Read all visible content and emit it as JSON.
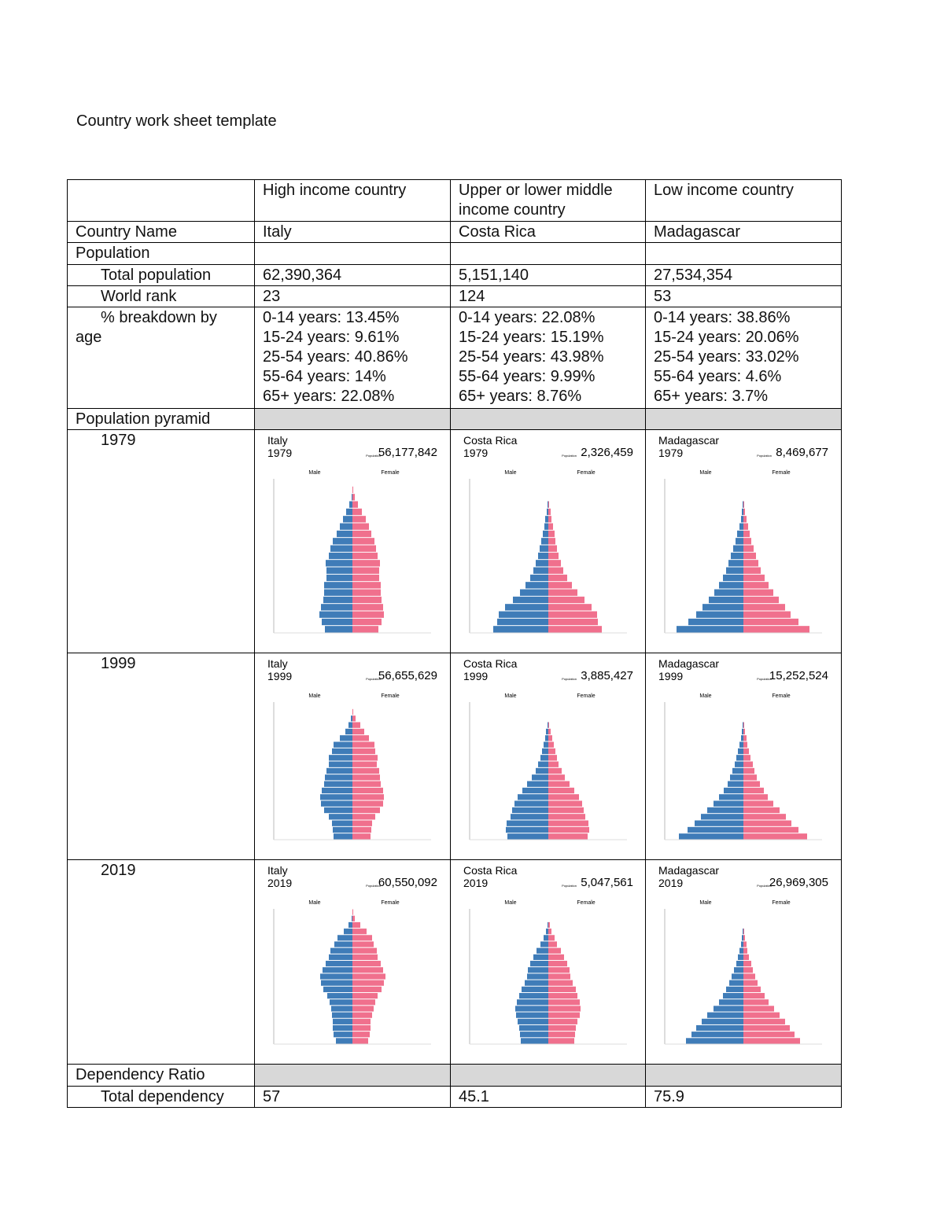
{
  "title": "Country work sheet template",
  "table": {
    "columns": [
      "High income country",
      "Upper or lower middle income country",
      "Low income country"
    ],
    "country_name": {
      "label": "Country Name",
      "values": [
        "Italy",
        "Costa Rica",
        "Madagascar"
      ]
    },
    "population_section": "Population",
    "total_population": {
      "label": "Total population",
      "values": [
        "62,390,364",
        "5,151,140",
        "27,534,354"
      ]
    },
    "world_rank": {
      "label": "World rank",
      "values": [
        23,
        124,
        53
      ]
    },
    "age_breakdown": {
      "label": "% breakdown by age",
      "values": [
        [
          "0-14 years: 13.45%",
          "15-24 years: 9.61%",
          "25-54 years: 40.86%",
          "55-64 years: 14%",
          "65+ years: 22.08%"
        ],
        [
          "0-14 years: 22.08%",
          "15-24 years: 15.19%",
          "25-54 years: 43.98%",
          "55-64 years: 9.99%",
          "65+ years: 8.76%"
        ],
        [
          "0-14 years: 38.86%",
          "15-24 years: 20.06%",
          "25-54 years: 33.02%",
          "55-64 years: 4.6%",
          "65+ years: 3.7%"
        ]
      ]
    },
    "pyramid_section": "Population pyramid",
    "pyramid_labels": {
      "male": "Male",
      "female": "Female",
      "population": "Population"
    },
    "pyramid_xlim": [
      0,
      10
    ],
    "pyramids": [
      {
        "year": "1979",
        "charts": [
          {
            "country": "Italy",
            "year": "1979",
            "population": "56,177,842",
            "male": [
              3.5,
              3.9,
              4.2,
              4.0,
              3.7,
              3.6,
              3.6,
              3.3,
              3.3,
              3.4,
              3.0,
              2.8,
              2.5,
              2.0,
              1.6,
              1.2,
              0.8,
              0.4,
              0.1,
              0,
              0
            ],
            "female": [
              3.3,
              3.7,
              4.0,
              3.9,
              3.7,
              3.6,
              3.6,
              3.4,
              3.4,
              3.5,
              3.2,
              3.0,
              2.8,
              2.4,
              2.1,
              1.7,
              1.2,
              0.7,
              0.3,
              0.1,
              0
            ]
          },
          {
            "country": "Costa Rica",
            "year": "1979",
            "population": "2,326,459",
            "male": [
              7.0,
              6.5,
              6.3,
              5.5,
              4.5,
              3.6,
              2.9,
              2.3,
              1.9,
              1.6,
              1.3,
              1.1,
              0.9,
              0.7,
              0.5,
              0.4,
              0.2,
              0.1,
              0,
              0,
              0
            ],
            "female": [
              6.8,
              6.3,
              6.2,
              5.5,
              4.6,
              3.7,
              3.0,
              2.4,
              1.9,
              1.6,
              1.3,
              1.1,
              0.9,
              0.8,
              0.6,
              0.4,
              0.3,
              0.1,
              0,
              0,
              0
            ]
          },
          {
            "country": "Madagascar",
            "year": "1979",
            "population": "8,469,677",
            "male": [
              8.5,
              7.0,
              6.0,
              5.2,
              4.4,
              3.7,
              3.1,
              2.6,
              2.2,
              1.9,
              1.6,
              1.3,
              1.0,
              0.8,
              0.5,
              0.3,
              0.2,
              0.1,
              0,
              0,
              0
            ],
            "female": [
              8.4,
              7.0,
              6.0,
              5.3,
              4.5,
              3.8,
              3.2,
              2.7,
              2.2,
              1.9,
              1.6,
              1.3,
              1.0,
              0.8,
              0.6,
              0.4,
              0.2,
              0.1,
              0,
              0,
              0
            ]
          }
        ]
      },
      {
        "year": "1999",
        "charts": [
          {
            "country": "Italy",
            "year": "1999",
            "population": "56,655,629",
            "male": [
              2.4,
              2.5,
              2.6,
              3.0,
              3.6,
              4.0,
              4.1,
              3.9,
              3.6,
              3.5,
              3.3,
              3.0,
              3.0,
              2.6,
              2.4,
              1.6,
              0.9,
              0.5,
              0.2,
              0,
              0
            ],
            "female": [
              2.3,
              2.4,
              2.5,
              2.9,
              3.5,
              3.9,
              4.0,
              3.9,
              3.6,
              3.5,
              3.4,
              3.1,
              3.2,
              2.9,
              2.8,
              2.1,
              1.5,
              1.0,
              0.4,
              0.1,
              0
            ]
          },
          {
            "country": "Costa Rica",
            "year": "1999",
            "population": "3,885,427",
            "male": [
              5.2,
              5.4,
              5.3,
              4.8,
              4.6,
              4.3,
              3.9,
              3.3,
              2.7,
              2.1,
              1.6,
              1.3,
              1.0,
              0.8,
              0.6,
              0.4,
              0.3,
              0.1,
              0,
              0,
              0
            ],
            "female": [
              5.0,
              5.2,
              5.1,
              4.7,
              4.5,
              4.3,
              3.9,
              3.3,
              2.7,
              2.1,
              1.7,
              1.3,
              1.1,
              0.9,
              0.7,
              0.5,
              0.3,
              0.1,
              0,
              0,
              0
            ]
          },
          {
            "country": "Madagascar",
            "year": "1999",
            "population": "15,252,524",
            "male": [
              8.2,
              7.1,
              6.2,
              5.4,
              4.6,
              3.8,
              3.1,
              2.5,
              2.0,
              1.7,
              1.4,
              1.1,
              0.9,
              0.7,
              0.5,
              0.3,
              0.2,
              0.1,
              0,
              0,
              0
            ],
            "female": [
              8.1,
              7.0,
              6.1,
              5.4,
              4.6,
              3.8,
              3.1,
              2.6,
              2.1,
              1.7,
              1.4,
              1.2,
              0.9,
              0.7,
              0.5,
              0.4,
              0.2,
              0.1,
              0,
              0,
              0
            ]
          }
        ]
      },
      {
        "year": "2019",
        "charts": [
          {
            "country": "Italy",
            "year": "2019",
            "population": "60,550,092",
            "male": [
              2.1,
              2.4,
              2.5,
              2.5,
              2.6,
              2.7,
              2.9,
              3.2,
              3.7,
              4.0,
              4.1,
              3.8,
              3.4,
              3.0,
              2.8,
              2.3,
              1.9,
              1.1,
              0.5,
              0.1,
              0
            ],
            "female": [
              2.0,
              2.2,
              2.3,
              2.3,
              2.5,
              2.7,
              2.9,
              3.2,
              3.7,
              4.0,
              4.2,
              3.9,
              3.6,
              3.2,
              3.1,
              2.7,
              2.5,
              1.8,
              1.0,
              0.3,
              0.1
            ]
          },
          {
            "country": "Costa Rica",
            "year": "2019",
            "population": "5,047,561",
            "male": [
              3.5,
              3.6,
              3.7,
              3.9,
              4.1,
              4.2,
              4.0,
              3.7,
              3.4,
              3.0,
              2.7,
              2.6,
              2.3,
              1.9,
              1.5,
              1.0,
              0.6,
              0.3,
              0.1,
              0,
              0
            ],
            "female": [
              3.3,
              3.4,
              3.5,
              3.7,
              4.0,
              4.1,
              4.0,
              3.7,
              3.5,
              3.1,
              2.8,
              2.7,
              2.4,
              2.0,
              1.6,
              1.1,
              0.8,
              0.4,
              0.2,
              0,
              0
            ]
          },
          {
            "country": "Madagascar",
            "year": "2019",
            "population": "26,969,305",
            "male": [
              7.3,
              6.6,
              6.0,
              5.3,
              4.6,
              3.8,
              3.1,
              2.6,
              2.2,
              1.8,
              1.5,
              1.2,
              0.9,
              0.7,
              0.5,
              0.3,
              0.2,
              0.1,
              0,
              0,
              0
            ],
            "female": [
              7.2,
              6.5,
              5.9,
              5.3,
              4.6,
              3.9,
              3.2,
              2.7,
              2.2,
              1.8,
              1.5,
              1.2,
              1.0,
              0.7,
              0.5,
              0.4,
              0.2,
              0.1,
              0,
              0,
              0
            ]
          }
        ]
      }
    ],
    "dependency_section": "Dependency Ratio",
    "total_dependency": {
      "label": "Total dependency",
      "values": [
        57,
        45.1,
        75.9
      ]
    }
  }
}
